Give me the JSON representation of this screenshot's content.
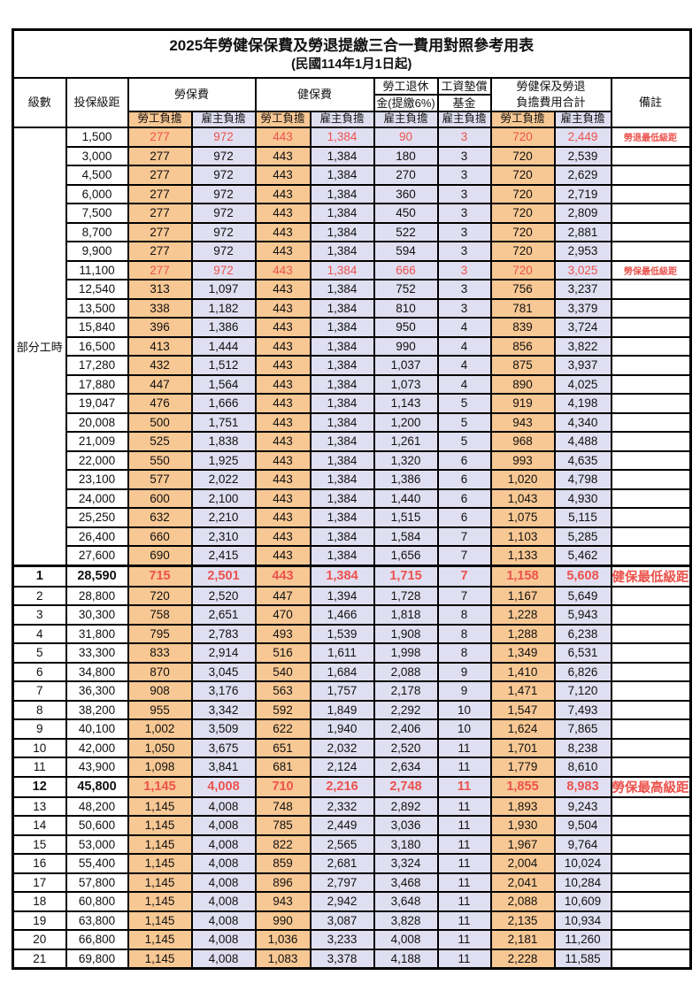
{
  "page": {
    "title": "2025年勞健保保費及勞退提繳三合一費用對照參考用表",
    "subtitle": "(民國114年1月1日起)"
  },
  "columns": {
    "level": "級數",
    "bracket": "投保級距",
    "labor_insurance": "勞保費",
    "health_insurance": "健保費",
    "pension_line1": "勞工退休",
    "pension_line2": "金(提繳6%)",
    "wage_fund_line1": "工資墊償",
    "wage_fund_line2": "基金",
    "total_line1": "勞健保及勞退",
    "total_line2": "負擔費用合計",
    "remarks": "備註"
  },
  "subheaders": {
    "employee": "勞工負擔",
    "employer": "雇主負擔"
  },
  "part_time": {
    "label": "部分工時",
    "rowspan": 23
  },
  "colors": {
    "employee_bg": "#F8C894",
    "employer_bg": "#E0DFF1",
    "highlight_red": "#EC524C",
    "border": "#000000"
  },
  "rows": [
    {
      "level": "",
      "bracket": "1,500",
      "labor_emp": "277",
      "labor_er": "972",
      "health_emp": "443",
      "health_er": "1,384",
      "pension_er": "90",
      "wage_er": "3",
      "total_emp": "720",
      "total_er": "2,449",
      "remark": "勞退最低級距",
      "highlight": true,
      "emphasis": false
    },
    {
      "level": "",
      "bracket": "3,000",
      "labor_emp": "277",
      "labor_er": "972",
      "health_emp": "443",
      "health_er": "1,384",
      "pension_er": "180",
      "wage_er": "3",
      "total_emp": "720",
      "total_er": "2,539",
      "remark": "",
      "highlight": false,
      "emphasis": false
    },
    {
      "level": "",
      "bracket": "4,500",
      "labor_emp": "277",
      "labor_er": "972",
      "health_emp": "443",
      "health_er": "1,384",
      "pension_er": "270",
      "wage_er": "3",
      "total_emp": "720",
      "total_er": "2,629",
      "remark": "",
      "highlight": false,
      "emphasis": false
    },
    {
      "level": "",
      "bracket": "6,000",
      "labor_emp": "277",
      "labor_er": "972",
      "health_emp": "443",
      "health_er": "1,384",
      "pension_er": "360",
      "wage_er": "3",
      "total_emp": "720",
      "total_er": "2,719",
      "remark": "",
      "highlight": false,
      "emphasis": false
    },
    {
      "level": "",
      "bracket": "7,500",
      "labor_emp": "277",
      "labor_er": "972",
      "health_emp": "443",
      "health_er": "1,384",
      "pension_er": "450",
      "wage_er": "3",
      "total_emp": "720",
      "total_er": "2,809",
      "remark": "",
      "highlight": false,
      "emphasis": false
    },
    {
      "level": "",
      "bracket": "8,700",
      "labor_emp": "277",
      "labor_er": "972",
      "health_emp": "443",
      "health_er": "1,384",
      "pension_er": "522",
      "wage_er": "3",
      "total_emp": "720",
      "total_er": "2,881",
      "remark": "",
      "highlight": false,
      "emphasis": false
    },
    {
      "level": "",
      "bracket": "9,900",
      "labor_emp": "277",
      "labor_er": "972",
      "health_emp": "443",
      "health_er": "1,384",
      "pension_er": "594",
      "wage_er": "3",
      "total_emp": "720",
      "total_er": "2,953",
      "remark": "",
      "highlight": false,
      "emphasis": false
    },
    {
      "level": "",
      "bracket": "11,100",
      "labor_emp": "277",
      "labor_er": "972",
      "health_emp": "443",
      "health_er": "1,384",
      "pension_er": "666",
      "wage_er": "3",
      "total_emp": "720",
      "total_er": "3,025",
      "remark": "勞保最低級距",
      "highlight": true,
      "emphasis": false
    },
    {
      "level": "",
      "bracket": "12,540",
      "labor_emp": "313",
      "labor_er": "1,097",
      "health_emp": "443",
      "health_er": "1,384",
      "pension_er": "752",
      "wage_er": "3",
      "total_emp": "756",
      "total_er": "3,237",
      "remark": "",
      "highlight": false,
      "emphasis": false
    },
    {
      "level": "",
      "bracket": "13,500",
      "labor_emp": "338",
      "labor_er": "1,182",
      "health_emp": "443",
      "health_er": "1,384",
      "pension_er": "810",
      "wage_er": "3",
      "total_emp": "781",
      "total_er": "3,379",
      "remark": "",
      "highlight": false,
      "emphasis": false
    },
    {
      "level": "",
      "bracket": "15,840",
      "labor_emp": "396",
      "labor_er": "1,386",
      "health_emp": "443",
      "health_er": "1,384",
      "pension_er": "950",
      "wage_er": "4",
      "total_emp": "839",
      "total_er": "3,724",
      "remark": "",
      "highlight": false,
      "emphasis": false
    },
    {
      "level": "",
      "bracket": "16,500",
      "labor_emp": "413",
      "labor_er": "1,444",
      "health_emp": "443",
      "health_er": "1,384",
      "pension_er": "990",
      "wage_er": "4",
      "total_emp": "856",
      "total_er": "3,822",
      "remark": "",
      "highlight": false,
      "emphasis": false
    },
    {
      "level": "",
      "bracket": "17,280",
      "labor_emp": "432",
      "labor_er": "1,512",
      "health_emp": "443",
      "health_er": "1,384",
      "pension_er": "1,037",
      "wage_er": "4",
      "total_emp": "875",
      "total_er": "3,937",
      "remark": "",
      "highlight": false,
      "emphasis": false
    },
    {
      "level": "",
      "bracket": "17,880",
      "labor_emp": "447",
      "labor_er": "1,564",
      "health_emp": "443",
      "health_er": "1,384",
      "pension_er": "1,073",
      "wage_er": "4",
      "total_emp": "890",
      "total_er": "4,025",
      "remark": "",
      "highlight": false,
      "emphasis": false
    },
    {
      "level": "",
      "bracket": "19,047",
      "labor_emp": "476",
      "labor_er": "1,666",
      "health_emp": "443",
      "health_er": "1,384",
      "pension_er": "1,143",
      "wage_er": "5",
      "total_emp": "919",
      "total_er": "4,198",
      "remark": "",
      "highlight": false,
      "emphasis": false
    },
    {
      "level": "",
      "bracket": "20,008",
      "labor_emp": "500",
      "labor_er": "1,751",
      "health_emp": "443",
      "health_er": "1,384",
      "pension_er": "1,200",
      "wage_er": "5",
      "total_emp": "943",
      "total_er": "4,340",
      "remark": "",
      "highlight": false,
      "emphasis": false
    },
    {
      "level": "",
      "bracket": "21,009",
      "labor_emp": "525",
      "labor_er": "1,838",
      "health_emp": "443",
      "health_er": "1,384",
      "pension_er": "1,261",
      "wage_er": "5",
      "total_emp": "968",
      "total_er": "4,488",
      "remark": "",
      "highlight": false,
      "emphasis": false
    },
    {
      "level": "",
      "bracket": "22,000",
      "labor_emp": "550",
      "labor_er": "1,925",
      "health_emp": "443",
      "health_er": "1,384",
      "pension_er": "1,320",
      "wage_er": "6",
      "total_emp": "993",
      "total_er": "4,635",
      "remark": "",
      "highlight": false,
      "emphasis": false
    },
    {
      "level": "",
      "bracket": "23,100",
      "labor_emp": "577",
      "labor_er": "2,022",
      "health_emp": "443",
      "health_er": "1,384",
      "pension_er": "1,386",
      "wage_er": "6",
      "total_emp": "1,020",
      "total_er": "4,798",
      "remark": "",
      "highlight": false,
      "emphasis": false
    },
    {
      "level": "",
      "bracket": "24,000",
      "labor_emp": "600",
      "labor_er": "2,100",
      "health_emp": "443",
      "health_er": "1,384",
      "pension_er": "1,440",
      "wage_er": "6",
      "total_emp": "1,043",
      "total_er": "4,930",
      "remark": "",
      "highlight": false,
      "emphasis": false
    },
    {
      "level": "",
      "bracket": "25,250",
      "labor_emp": "632",
      "labor_er": "2,210",
      "health_emp": "443",
      "health_er": "1,384",
      "pension_er": "1,515",
      "wage_er": "6",
      "total_emp": "1,075",
      "total_er": "5,115",
      "remark": "",
      "highlight": false,
      "emphasis": false
    },
    {
      "level": "",
      "bracket": "26,400",
      "labor_emp": "660",
      "labor_er": "2,310",
      "health_emp": "443",
      "health_er": "1,384",
      "pension_er": "1,584",
      "wage_er": "7",
      "total_emp": "1,103",
      "total_er": "5,285",
      "remark": "",
      "highlight": false,
      "emphasis": false
    },
    {
      "level": "",
      "bracket": "27,600",
      "labor_emp": "690",
      "labor_er": "2,415",
      "health_emp": "443",
      "health_er": "1,384",
      "pension_er": "1,656",
      "wage_er": "7",
      "total_emp": "1,133",
      "total_er": "5,462",
      "remark": "",
      "highlight": false,
      "emphasis": false
    },
    {
      "level": "1",
      "bracket": "28,590",
      "labor_emp": "715",
      "labor_er": "2,501",
      "health_emp": "443",
      "health_er": "1,384",
      "pension_er": "1,715",
      "wage_er": "7",
      "total_emp": "1,158",
      "total_er": "5,608",
      "remark": "健保最低級距",
      "highlight": true,
      "emphasis": true
    },
    {
      "level": "2",
      "bracket": "28,800",
      "labor_emp": "720",
      "labor_er": "2,520",
      "health_emp": "447",
      "health_er": "1,394",
      "pension_er": "1,728",
      "wage_er": "7",
      "total_emp": "1,167",
      "total_er": "5,649",
      "remark": "",
      "highlight": false,
      "emphasis": false
    },
    {
      "level": "3",
      "bracket": "30,300",
      "labor_emp": "758",
      "labor_er": "2,651",
      "health_emp": "470",
      "health_er": "1,466",
      "pension_er": "1,818",
      "wage_er": "8",
      "total_emp": "1,228",
      "total_er": "5,943",
      "remark": "",
      "highlight": false,
      "emphasis": false
    },
    {
      "level": "4",
      "bracket": "31,800",
      "labor_emp": "795",
      "labor_er": "2,783",
      "health_emp": "493",
      "health_er": "1,539",
      "pension_er": "1,908",
      "wage_er": "8",
      "total_emp": "1,288",
      "total_er": "6,238",
      "remark": "",
      "highlight": false,
      "emphasis": false
    },
    {
      "level": "5",
      "bracket": "33,300",
      "labor_emp": "833",
      "labor_er": "2,914",
      "health_emp": "516",
      "health_er": "1,611",
      "pension_er": "1,998",
      "wage_er": "8",
      "total_emp": "1,349",
      "total_er": "6,531",
      "remark": "",
      "highlight": false,
      "emphasis": false
    },
    {
      "level": "6",
      "bracket": "34,800",
      "labor_emp": "870",
      "labor_er": "3,045",
      "health_emp": "540",
      "health_er": "1,684",
      "pension_er": "2,088",
      "wage_er": "9",
      "total_emp": "1,410",
      "total_er": "6,826",
      "remark": "",
      "highlight": false,
      "emphasis": false
    },
    {
      "level": "7",
      "bracket": "36,300",
      "labor_emp": "908",
      "labor_er": "3,176",
      "health_emp": "563",
      "health_er": "1,757",
      "pension_er": "2,178",
      "wage_er": "9",
      "total_emp": "1,471",
      "total_er": "7,120",
      "remark": "",
      "highlight": false,
      "emphasis": false
    },
    {
      "level": "8",
      "bracket": "38,200",
      "labor_emp": "955",
      "labor_er": "3,342",
      "health_emp": "592",
      "health_er": "1,849",
      "pension_er": "2,292",
      "wage_er": "10",
      "total_emp": "1,547",
      "total_er": "7,493",
      "remark": "",
      "highlight": false,
      "emphasis": false
    },
    {
      "level": "9",
      "bracket": "40,100",
      "labor_emp": "1,002",
      "labor_er": "3,509",
      "health_emp": "622",
      "health_er": "1,940",
      "pension_er": "2,406",
      "wage_er": "10",
      "total_emp": "1,624",
      "total_er": "7,865",
      "remark": "",
      "highlight": false,
      "emphasis": false
    },
    {
      "level": "10",
      "bracket": "42,000",
      "labor_emp": "1,050",
      "labor_er": "3,675",
      "health_emp": "651",
      "health_er": "2,032",
      "pension_er": "2,520",
      "wage_er": "11",
      "total_emp": "1,701",
      "total_er": "8,238",
      "remark": "",
      "highlight": false,
      "emphasis": false
    },
    {
      "level": "11",
      "bracket": "43,900",
      "labor_emp": "1,098",
      "labor_er": "3,841",
      "health_emp": "681",
      "health_er": "2,124",
      "pension_er": "2,634",
      "wage_er": "11",
      "total_emp": "1,779",
      "total_er": "8,610",
      "remark": "",
      "highlight": false,
      "emphasis": false
    },
    {
      "level": "12",
      "bracket": "45,800",
      "labor_emp": "1,145",
      "labor_er": "4,008",
      "health_emp": "710",
      "health_er": "2,216",
      "pension_er": "2,748",
      "wage_er": "11",
      "total_emp": "1,855",
      "total_er": "8,983",
      "remark": "勞保最高級距",
      "highlight": true,
      "emphasis": true
    },
    {
      "level": "13",
      "bracket": "48,200",
      "labor_emp": "1,145",
      "labor_er": "4,008",
      "health_emp": "748",
      "health_er": "2,332",
      "pension_er": "2,892",
      "wage_er": "11",
      "total_emp": "1,893",
      "total_er": "9,243",
      "remark": "",
      "highlight": false,
      "emphasis": false
    },
    {
      "level": "14",
      "bracket": "50,600",
      "labor_emp": "1,145",
      "labor_er": "4,008",
      "health_emp": "785",
      "health_er": "2,449",
      "pension_er": "3,036",
      "wage_er": "11",
      "total_emp": "1,930",
      "total_er": "9,504",
      "remark": "",
      "highlight": false,
      "emphasis": false
    },
    {
      "level": "15",
      "bracket": "53,000",
      "labor_emp": "1,145",
      "labor_er": "4,008",
      "health_emp": "822",
      "health_er": "2,565",
      "pension_er": "3,180",
      "wage_er": "11",
      "total_emp": "1,967",
      "total_er": "9,764",
      "remark": "",
      "highlight": false,
      "emphasis": false
    },
    {
      "level": "16",
      "bracket": "55,400",
      "labor_emp": "1,145",
      "labor_er": "4,008",
      "health_emp": "859",
      "health_er": "2,681",
      "pension_er": "3,324",
      "wage_er": "11",
      "total_emp": "2,004",
      "total_er": "10,024",
      "remark": "",
      "highlight": false,
      "emphasis": false
    },
    {
      "level": "17",
      "bracket": "57,800",
      "labor_emp": "1,145",
      "labor_er": "4,008",
      "health_emp": "896",
      "health_er": "2,797",
      "pension_er": "3,468",
      "wage_er": "11",
      "total_emp": "2,041",
      "total_er": "10,284",
      "remark": "",
      "highlight": false,
      "emphasis": false
    },
    {
      "level": "18",
      "bracket": "60,800",
      "labor_emp": "1,145",
      "labor_er": "4,008",
      "health_emp": "943",
      "health_er": "2,942",
      "pension_er": "3,648",
      "wage_er": "11",
      "total_emp": "2,088",
      "total_er": "10,609",
      "remark": "",
      "highlight": false,
      "emphasis": false
    },
    {
      "level": "19",
      "bracket": "63,800",
      "labor_emp": "1,145",
      "labor_er": "4,008",
      "health_emp": "990",
      "health_er": "3,087",
      "pension_er": "3,828",
      "wage_er": "11",
      "total_emp": "2,135",
      "total_er": "10,934",
      "remark": "",
      "highlight": false,
      "emphasis": false
    },
    {
      "level": "20",
      "bracket": "66,800",
      "labor_emp": "1,145",
      "labor_er": "4,008",
      "health_emp": "1,036",
      "health_er": "3,233",
      "pension_er": "4,008",
      "wage_er": "11",
      "total_emp": "2,181",
      "total_er": "11,260",
      "remark": "",
      "highlight": false,
      "emphasis": false
    },
    {
      "level": "21",
      "bracket": "69,800",
      "labor_emp": "1,145",
      "labor_er": "4,008",
      "health_emp": "1,083",
      "health_er": "3,378",
      "pension_er": "4,188",
      "wage_er": "11",
      "total_emp": "2,228",
      "total_er": "11,585",
      "remark": "",
      "highlight": false,
      "emphasis": false
    }
  ]
}
